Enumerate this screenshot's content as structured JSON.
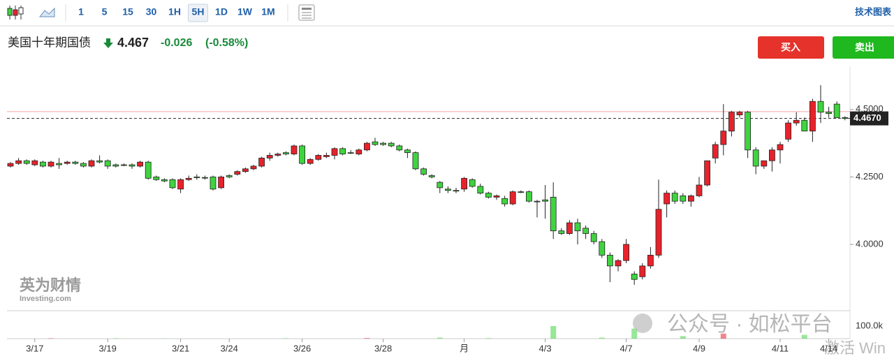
{
  "toolbar": {
    "intervals": [
      "1",
      "5",
      "15",
      "30",
      "1H",
      "5H",
      "1D",
      "1W",
      "1M"
    ],
    "selected": "5H",
    "right_link": "技术图表"
  },
  "header": {
    "title": "美国十年期国债",
    "price": "4.467",
    "change": "-0.026",
    "change_pct": "(-0.58%)"
  },
  "buttons": {
    "buy": "买入",
    "sell": "卖出"
  },
  "watermarks": {
    "logo_cn": "英为财情",
    "logo_en": "Investing.com",
    "wechat": "公众号 · 如松平台",
    "windows": "激活 Win"
  },
  "chart_data": {
    "type": "candlestick",
    "up_color": "#e8222b",
    "down_color": "#3fd43f",
    "ylim": [
      3.754,
      4.66
    ],
    "yticks": [
      {
        "value": 4.0,
        "label": "4.0000"
      },
      {
        "value": 4.25,
        "label": "4.2500"
      },
      {
        "value": 4.5,
        "label": "4.5000"
      }
    ],
    "last": {
      "value": 4.467,
      "label": "4.4670"
    },
    "ask_line": 4.492,
    "vlim": [
      0,
      100000
    ],
    "vticks": [
      {
        "value": 100000,
        "label": "100.0k"
      }
    ],
    "categories": [
      null,
      null,
      null,
      "3/17",
      null,
      null,
      null,
      null,
      null,
      null,
      null,
      null,
      "3/19",
      null,
      null,
      null,
      null,
      null,
      null,
      null,
      null,
      "3/21",
      null,
      null,
      null,
      null,
      null,
      "3/24",
      null,
      null,
      null,
      null,
      null,
      null,
      null,
      null,
      "3/26",
      null,
      null,
      null,
      null,
      null,
      null,
      null,
      null,
      null,
      "3/28",
      null,
      null,
      null,
      null,
      null,
      null,
      null,
      null,
      null,
      "月",
      null,
      null,
      null,
      null,
      null,
      null,
      null,
      null,
      null,
      "4/3",
      null,
      null,
      null,
      null,
      null,
      null,
      null,
      null,
      null,
      "4/7",
      null,
      null,
      null,
      null,
      null,
      null,
      null,
      null,
      "4/9",
      null,
      null,
      null,
      null,
      null,
      null,
      null,
      null,
      null,
      "4/11",
      null,
      null,
      null,
      null,
      null,
      "4/14",
      null,
      null
    ],
    "open": [
      4.29,
      4.3,
      4.31,
      4.295,
      4.305,
      4.29,
      4.3,
      4.3,
      4.305,
      4.3,
      4.29,
      4.31,
      4.31,
      4.295,
      4.295,
      4.295,
      4.29,
      4.305,
      4.25,
      4.24,
      4.24,
      4.205,
      4.24,
      4.25,
      4.248,
      4.25,
      4.21,
      4.255,
      4.26,
      4.27,
      4.28,
      4.29,
      4.32,
      4.33,
      4.34,
      4.335,
      4.365,
      4.3,
      4.315,
      4.325,
      4.33,
      4.355,
      4.34,
      4.335,
      4.35,
      4.38,
      4.375,
      4.375,
      4.365,
      4.35,
      4.34,
      4.28,
      4.255,
      4.23,
      4.205,
      4.2,
      4.205,
      4.24,
      4.215,
      4.19,
      4.175,
      4.17,
      4.15,
      4.195,
      4.195,
      4.16,
      4.165,
      4.175,
      4.05,
      4.04,
      4.08,
      4.06,
      4.04,
      4.01,
      3.96,
      3.92,
      3.94,
      3.89,
      3.88,
      3.92,
      3.96,
      4.15,
      4.19,
      4.18,
      4.16,
      4.18,
      4.22,
      4.32,
      4.37,
      4.42,
      4.48,
      4.49,
      4.35,
      4.29,
      4.31,
      4.35,
      4.39,
      4.45,
      4.46,
      4.42,
      4.53,
      4.49,
      4.52,
      4.47
    ],
    "high": [
      4.305,
      4.32,
      4.315,
      4.315,
      4.31,
      4.31,
      4.32,
      4.31,
      4.31,
      4.305,
      4.315,
      4.33,
      4.315,
      4.3,
      4.3,
      4.3,
      4.31,
      4.31,
      4.255,
      4.245,
      4.245,
      4.245,
      4.255,
      4.26,
      4.255,
      4.255,
      4.255,
      4.26,
      4.275,
      4.285,
      4.295,
      4.325,
      4.34,
      4.34,
      4.345,
      4.37,
      4.37,
      4.32,
      4.335,
      4.34,
      4.36,
      4.36,
      4.35,
      4.355,
      4.38,
      4.395,
      4.38,
      4.38,
      4.37,
      4.355,
      4.345,
      4.285,
      4.26,
      4.235,
      4.215,
      4.21,
      4.25,
      4.245,
      4.225,
      4.195,
      4.185,
      4.18,
      4.2,
      4.2,
      4.2,
      4.165,
      4.22,
      4.23,
      4.06,
      4.09,
      4.095,
      4.07,
      4.05,
      4.02,
      3.97,
      3.945,
      4.02,
      3.9,
      3.93,
      3.99,
      4.24,
      4.2,
      4.2,
      4.19,
      4.185,
      4.25,
      4.31,
      4.38,
      4.52,
      4.495,
      4.495,
      4.495,
      4.36,
      4.31,
      4.36,
      4.38,
      4.46,
      4.49,
      4.47,
      4.54,
      4.59,
      4.51,
      4.53,
      4.475
    ],
    "low": [
      4.285,
      4.295,
      4.295,
      4.29,
      4.285,
      4.285,
      4.28,
      4.295,
      4.295,
      4.285,
      4.285,
      4.3,
      4.28,
      4.285,
      4.29,
      4.28,
      4.285,
      4.24,
      4.235,
      4.23,
      4.205,
      4.19,
      4.235,
      4.24,
      4.24,
      4.2,
      4.205,
      4.245,
      4.255,
      4.265,
      4.275,
      4.285,
      4.31,
      4.325,
      4.33,
      4.33,
      4.295,
      4.295,
      4.31,
      4.32,
      4.315,
      4.33,
      4.335,
      4.33,
      4.345,
      4.365,
      4.365,
      4.36,
      4.345,
      4.32,
      4.275,
      4.255,
      4.245,
      4.19,
      4.19,
      4.19,
      4.195,
      4.21,
      4.185,
      4.17,
      4.165,
      4.14,
      4.145,
      4.19,
      4.155,
      4.1,
      4.095,
      4.02,
      4.035,
      4.035,
      4.0,
      4.02,
      4.0,
      3.95,
      3.86,
      3.9,
      3.93,
      3.85,
      3.87,
      3.91,
      3.95,
      4.1,
      4.15,
      4.15,
      4.14,
      4.175,
      4.215,
      4.3,
      4.33,
      4.4,
      4.47,
      4.32,
      4.26,
      4.28,
      4.27,
      4.3,
      4.38,
      4.44,
      4.42,
      4.38,
      4.45,
      4.47,
      4.47,
      4.46
    ],
    "close": [
      4.3,
      4.31,
      4.3,
      4.31,
      4.29,
      4.305,
      4.295,
      4.305,
      4.3,
      4.29,
      4.31,
      4.305,
      4.29,
      4.29,
      4.293,
      4.29,
      4.305,
      4.245,
      4.24,
      4.235,
      4.21,
      4.24,
      4.245,
      4.248,
      4.246,
      4.205,
      4.25,
      4.25,
      4.27,
      4.28,
      4.29,
      4.32,
      4.33,
      4.335,
      4.335,
      4.365,
      4.3,
      4.315,
      4.33,
      4.33,
      4.355,
      4.335,
      4.34,
      4.35,
      4.375,
      4.37,
      4.37,
      4.365,
      4.35,
      4.34,
      4.28,
      4.26,
      4.25,
      4.21,
      4.2,
      4.198,
      4.245,
      4.215,
      4.19,
      4.175,
      4.18,
      4.15,
      4.195,
      4.193,
      4.16,
      4.158,
      4.16,
      4.05,
      4.04,
      4.08,
      4.05,
      4.04,
      4.01,
      3.96,
      3.92,
      3.94,
      4.0,
      3.87,
      3.92,
      3.96,
      4.13,
      4.19,
      4.16,
      4.16,
      4.18,
      4.22,
      4.31,
      4.37,
      4.42,
      4.49,
      4.49,
      4.35,
      4.29,
      4.31,
      4.35,
      4.37,
      4.45,
      4.46,
      4.42,
      4.53,
      4.49,
      4.485,
      4.47,
      4.467
    ],
    "volume": [
      null,
      null,
      null,
      null,
      null,
      3000,
      null,
      null,
      null,
      null,
      null,
      null,
      null,
      3000,
      null,
      null,
      null,
      null,
      null,
      2000,
      null,
      null,
      null,
      null,
      null,
      null,
      null,
      null,
      null,
      null,
      null,
      null,
      null,
      null,
      3000,
      null,
      null,
      null,
      null,
      null,
      null,
      null,
      null,
      null,
      5000,
      null,
      null,
      null,
      null,
      null,
      null,
      null,
      null,
      8000,
      null,
      null,
      null,
      null,
      null,
      4000,
      null,
      null,
      null,
      null,
      null,
      null,
      null,
      100000,
      null,
      null,
      null,
      null,
      null,
      8000,
      null,
      null,
      null,
      80000,
      null,
      null,
      null,
      null,
      null,
      20000,
      null,
      null,
      null,
      null,
      40000,
      null,
      null,
      null,
      null,
      null,
      null,
      null,
      null,
      null,
      30000,
      null,
      null,
      null,
      null,
      null
    ]
  }
}
